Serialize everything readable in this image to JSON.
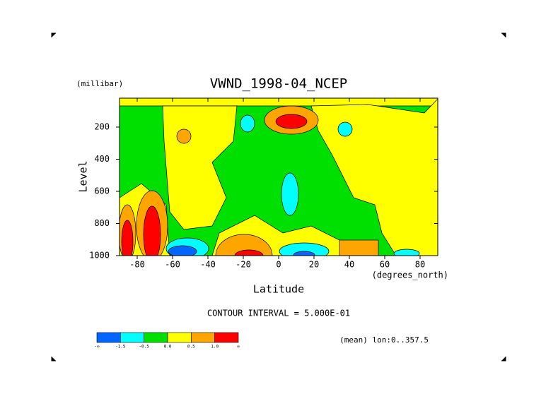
{
  "chart_data": {
    "type": "contour",
    "title": "VWND_1998-04_NCEP",
    "y_unit": "(millibar)",
    "ylabel": "Level",
    "xlabel": "Latitude",
    "x_unit": "(degrees_north)",
    "note": "CONTOUR INTERVAL = 5.000E-01",
    "footer": "(mean) lon:0..357.5",
    "xlim": [
      -90,
      90
    ],
    "xticks": [
      -80,
      -60,
      -40,
      -20,
      0,
      20,
      40,
      60,
      80
    ],
    "ylim": [
      1000,
      20
    ],
    "yticks": [
      200,
      400,
      600,
      800,
      1000
    ],
    "colorbar": {
      "colors": [
        "#0066ff",
        "#00ffff",
        "#00e000",
        "#ffff00",
        "#ffa500",
        "#ff0000"
      ],
      "labels": [
        "-∞",
        "-1.5",
        "-0.5",
        "0.0",
        "0.5",
        "1.0",
        "∞"
      ]
    }
  }
}
